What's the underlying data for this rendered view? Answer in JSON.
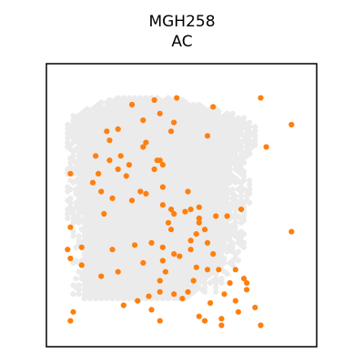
{
  "chart_data": {
    "type": "scatter",
    "title": "MGH258",
    "subtitle": "AC",
    "xlabel": "",
    "ylabel": "",
    "axes_ticks": false,
    "grid": false,
    "legend": "none",
    "colors": {
      "background_spot": "#ebebeb",
      "highlight": "#ff7f0e",
      "frame": "#000000"
    },
    "tissue_rows": [
      [
        8,
        10,
        20,
        28
      ],
      [
        12,
        6,
        26,
        20
      ],
      [
        16,
        3,
        32,
        10
      ],
      [
        22,
        2,
        35,
        10
      ],
      [
        28,
        2,
        35,
        12
      ],
      [
        32,
        2,
        34,
        24
      ],
      [
        36,
        2,
        33,
        30
      ],
      [
        40,
        2,
        33,
        36
      ],
      [
        50,
        2,
        34,
        40
      ],
      [
        60,
        2,
        33,
        42
      ],
      [
        70,
        3,
        33,
        46
      ],
      [
        80,
        3,
        32,
        50
      ],
      [
        84,
        3,
        31,
        54
      ],
      [
        88,
        3,
        30,
        70
      ],
      [
        94,
        3,
        28,
        78
      ],
      [
        98,
        3,
        26,
        80
      ]
    ],
    "highlighted_spots": [
      [
        35,
        9
      ],
      [
        43,
        8
      ],
      [
        73,
        8
      ],
      [
        27,
        11
      ],
      [
        56,
        12
      ],
      [
        37,
        15
      ],
      [
        31,
        18
      ],
      [
        42,
        19
      ],
      [
        41,
        23
      ],
      [
        22,
        22
      ],
      [
        84,
        20
      ],
      [
        18,
        23
      ],
      [
        54,
        25
      ],
      [
        19,
        27
      ],
      [
        32,
        28
      ],
      [
        31,
        30
      ],
      [
        75,
        30
      ],
      [
        23,
        34
      ],
      [
        14,
        34
      ],
      [
        36,
        36
      ],
      [
        37,
        36
      ],
      [
        19,
        36
      ],
      [
        26,
        38
      ],
      [
        38,
        38
      ],
      [
        22,
        40
      ],
      [
        35,
        40
      ],
      [
        5,
        42
      ],
      [
        15,
        42
      ],
      [
        25,
        43
      ],
      [
        13,
        46
      ],
      [
        38,
        48
      ],
      [
        30,
        50
      ],
      [
        47,
        50
      ],
      [
        32,
        51
      ],
      [
        16,
        50
      ],
      [
        27,
        54
      ],
      [
        20,
        53
      ],
      [
        38,
        56
      ],
      [
        51,
        57
      ],
      [
        48,
        58
      ],
      [
        41,
        58
      ],
      [
        66,
        58
      ],
      [
        46,
        59
      ],
      [
        17,
        60
      ],
      [
        42,
        60
      ],
      [
        57,
        61
      ],
      [
        61,
        61
      ],
      [
        51,
        62
      ],
      [
        40,
        64
      ],
      [
        51,
        64
      ],
      [
        5,
        66
      ],
      [
        53,
        67
      ],
      [
        41,
        67
      ],
      [
        84,
        68
      ],
      [
        50,
        69
      ],
      [
        48,
        72
      ],
      [
        54,
        73
      ],
      [
        34,
        73
      ],
      [
        28,
        74
      ],
      [
        9,
        75
      ],
      [
        38,
        75
      ],
      [
        4,
        76
      ],
      [
        20,
        76
      ],
      [
        48,
        76
      ],
      [
        42,
        78
      ],
      [
        56,
        78
      ],
      [
        44,
        79
      ],
      [
        5,
        80
      ],
      [
        38,
        81
      ],
      [
        9,
        83
      ],
      [
        31,
        82
      ],
      [
        50,
        84
      ],
      [
        54,
        85
      ],
      [
        22,
        86
      ],
      [
        39,
        86
      ],
      [
        64,
        85
      ],
      [
        58,
        85
      ],
      [
        16,
        88
      ],
      [
        37,
        90
      ],
      [
        49,
        90
      ],
      [
        67,
        89
      ],
      [
        62,
        91
      ],
      [
        68,
        91
      ],
      [
        68,
        94
      ],
      [
        37,
        95
      ],
      [
        47,
        95
      ],
      [
        42,
        96
      ],
      [
        60,
        96
      ],
      [
        33,
        97
      ],
      [
        29,
        99
      ],
      [
        45,
        98
      ],
      [
        64,
        99
      ],
      [
        55,
        100
      ],
      [
        24,
        101
      ],
      [
        71,
        102
      ],
      [
        34,
        103
      ],
      [
        6,
        104
      ],
      [
        65,
        104
      ],
      [
        51,
        106
      ],
      [
        59,
        107
      ],
      [
        5,
        108
      ],
      [
        53,
        108
      ],
      [
        37,
        108
      ],
      [
        59,
        110
      ],
      [
        73,
        110
      ]
    ]
  }
}
